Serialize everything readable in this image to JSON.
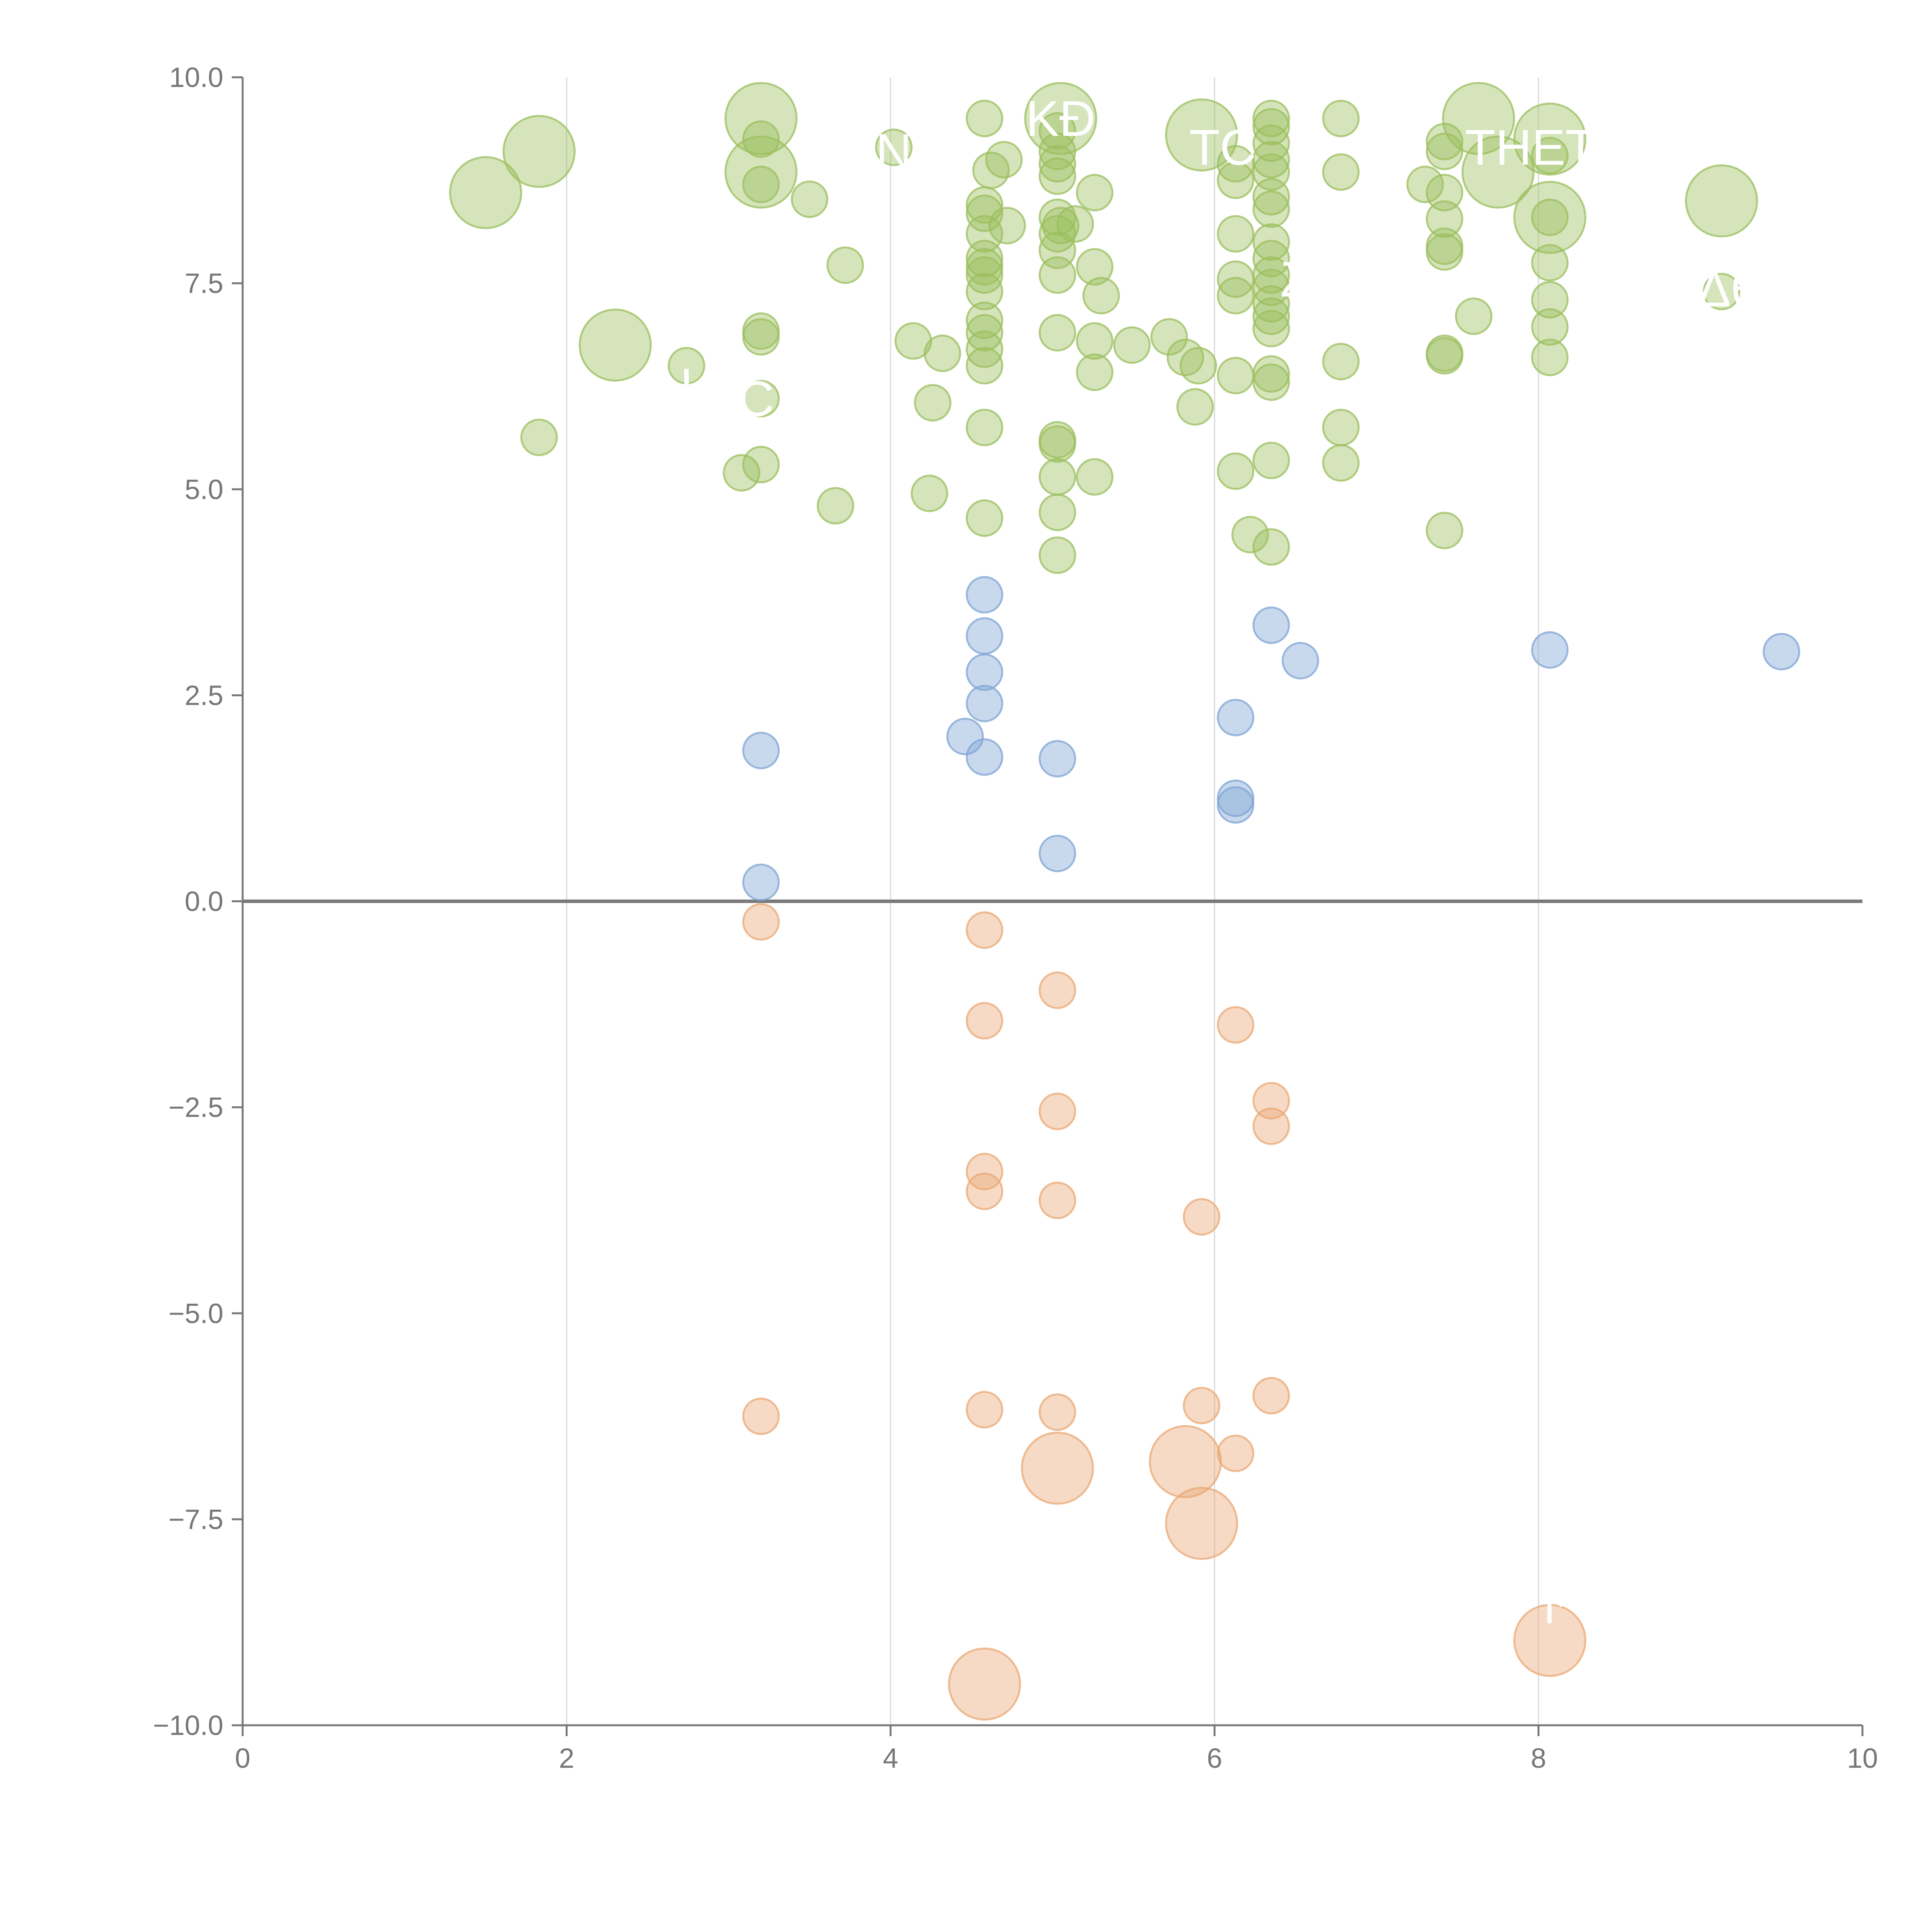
{
  "chart_data": {
    "type": "scatter",
    "title": "",
    "xlabel": "",
    "ylabel": "",
    "xlim": [
      0,
      10
    ],
    "ylim": [
      -10,
      10
    ],
    "x_ticks": [
      "0",
      "2",
      "4",
      "6",
      "8",
      "10"
    ],
    "y_ticks": [
      "10.0",
      "7.5",
      "5.0",
      "2.5",
      "0.0",
      "−2.5",
      "−5.0",
      "−7.5",
      "−10.0"
    ],
    "x_tick_values": [
      0,
      2,
      4,
      6,
      8,
      10
    ],
    "y_tick_values": [
      10,
      7.5,
      5,
      2.5,
      0,
      -2.5,
      -5,
      -7.5,
      -10
    ],
    "grid": "vertical",
    "zero_line": true,
    "colors": {
      "high": "#9bbf5e",
      "mid": "#7fa4d4",
      "low": "#eaa874",
      "axis": "#777777",
      "grid": "#d9d9d9",
      "zero": "#7a7a7a"
    },
    "series": [
      {
        "name": "high",
        "points": [
          {
            "x": 1.5,
            "y": 8.6,
            "size": 3
          },
          {
            "x": 1.83,
            "y": 9.1,
            "size": 3
          },
          {
            "x": 2.3,
            "y": 6.75,
            "size": 3
          },
          {
            "x": 3.2,
            "y": 9.5,
            "size": 3
          },
          {
            "x": 3.2,
            "y": 8.85,
            "size": 3
          },
          {
            "x": 7.63,
            "y": 9.5,
            "size": 3
          },
          {
            "x": 7.75,
            "y": 8.85,
            "size": 3
          },
          {
            "x": 8.07,
            "y": 9.25,
            "size": 3
          },
          {
            "x": 8.07,
            "y": 8.3,
            "size": 3
          },
          {
            "x": 9.13,
            "y": 8.5,
            "size": 3
          },
          {
            "x": 5.92,
            "y": 9.3,
            "size": 3
          },
          {
            "x": 5.05,
            "y": 9.5,
            "size": 3
          },
          {
            "x": 1.83,
            "y": 5.63,
            "size": 1
          },
          {
            "x": 2.74,
            "y": 6.5,
            "size": 1
          },
          {
            "x": 3.08,
            "y": 5.2,
            "size": 1
          },
          {
            "x": 3.2,
            "y": 9.25,
            "size": 1
          },
          {
            "x": 3.2,
            "y": 8.7,
            "size": 1
          },
          {
            "x": 3.2,
            "y": 6.92,
            "size": 1
          },
          {
            "x": 3.2,
            "y": 6.85,
            "size": 1
          },
          {
            "x": 3.2,
            "y": 6.1,
            "size": 1
          },
          {
            "x": 3.2,
            "y": 5.3,
            "size": 1
          },
          {
            "x": 3.5,
            "y": 8.52,
            "size": 1
          },
          {
            "x": 3.66,
            "y": 4.8,
            "size": 1
          },
          {
            "x": 3.72,
            "y": 7.72,
            "size": 1
          },
          {
            "x": 4.02,
            "y": 9.15,
            "size": 1
          },
          {
            "x": 4.14,
            "y": 6.8,
            "size": 1
          },
          {
            "x": 4.24,
            "y": 4.95,
            "size": 1
          },
          {
            "x": 4.26,
            "y": 6.05,
            "size": 1
          },
          {
            "x": 4.32,
            "y": 6.65,
            "size": 1
          },
          {
            "x": 4.58,
            "y": 9.5,
            "size": 1
          },
          {
            "x": 4.58,
            "y": 8.45,
            "size": 1
          },
          {
            "x": 4.58,
            "y": 8.35,
            "size": 1
          },
          {
            "x": 4.58,
            "y": 8.1,
            "size": 1
          },
          {
            "x": 4.58,
            "y": 7.8,
            "size": 1
          },
          {
            "x": 4.58,
            "y": 7.7,
            "size": 1
          },
          {
            "x": 4.58,
            "y": 7.6,
            "size": 1
          },
          {
            "x": 4.58,
            "y": 7.4,
            "size": 1
          },
          {
            "x": 4.58,
            "y": 7.05,
            "size": 1
          },
          {
            "x": 4.58,
            "y": 6.9,
            "size": 1
          },
          {
            "x": 4.58,
            "y": 6.7,
            "size": 1
          },
          {
            "x": 4.58,
            "y": 6.5,
            "size": 1
          },
          {
            "x": 4.58,
            "y": 5.75,
            "size": 1
          },
          {
            "x": 4.58,
            "y": 4.65,
            "size": 1
          },
          {
            "x": 4.62,
            "y": 8.87,
            "size": 1
          },
          {
            "x": 4.7,
            "y": 9.0,
            "size": 1
          },
          {
            "x": 4.72,
            "y": 8.2,
            "size": 1
          },
          {
            "x": 5.03,
            "y": 9.35,
            "size": 1
          },
          {
            "x": 5.03,
            "y": 9.1,
            "size": 1
          },
          {
            "x": 5.03,
            "y": 8.95,
            "size": 1
          },
          {
            "x": 5.03,
            "y": 8.8,
            "size": 1
          },
          {
            "x": 5.03,
            "y": 8.3,
            "size": 1
          },
          {
            "x": 5.03,
            "y": 8.1,
            "size": 1
          },
          {
            "x": 5.03,
            "y": 7.9,
            "size": 1
          },
          {
            "x": 5.03,
            "y": 7.6,
            "size": 1
          },
          {
            "x": 5.03,
            "y": 6.9,
            "size": 1
          },
          {
            "x": 5.03,
            "y": 5.6,
            "size": 1
          },
          {
            "x": 5.03,
            "y": 5.55,
            "size": 1
          },
          {
            "x": 5.03,
            "y": 5.15,
            "size": 1
          },
          {
            "x": 5.03,
            "y": 4.72,
            "size": 1
          },
          {
            "x": 5.03,
            "y": 4.2,
            "size": 1
          },
          {
            "x": 5.05,
            "y": 8.2,
            "size": 1
          },
          {
            "x": 5.14,
            "y": 8.22,
            "size": 1
          },
          {
            "x": 5.26,
            "y": 8.6,
            "size": 1
          },
          {
            "x": 5.26,
            "y": 7.7,
            "size": 1
          },
          {
            "x": 5.26,
            "y": 6.8,
            "size": 1
          },
          {
            "x": 5.26,
            "y": 6.42,
            "size": 1
          },
          {
            "x": 5.26,
            "y": 5.15,
            "size": 1
          },
          {
            "x": 5.3,
            "y": 7.35,
            "size": 1
          },
          {
            "x": 5.49,
            "y": 6.75,
            "size": 1
          },
          {
            "x": 5.72,
            "y": 6.85,
            "size": 1
          },
          {
            "x": 5.82,
            "y": 6.6,
            "size": 1
          },
          {
            "x": 5.9,
            "y": 6.5,
            "size": 1
          },
          {
            "x": 5.88,
            "y": 6.0,
            "size": 1
          },
          {
            "x": 6.13,
            "y": 8.95,
            "size": 1
          },
          {
            "x": 6.13,
            "y": 8.75,
            "size": 1
          },
          {
            "x": 6.13,
            "y": 8.1,
            "size": 1
          },
          {
            "x": 6.13,
            "y": 7.55,
            "size": 1
          },
          {
            "x": 6.13,
            "y": 7.35,
            "size": 1
          },
          {
            "x": 6.13,
            "y": 6.38,
            "size": 1
          },
          {
            "x": 6.13,
            "y": 5.22,
            "size": 1
          },
          {
            "x": 6.22,
            "y": 4.45,
            "size": 1
          },
          {
            "x": 6.35,
            "y": 9.5,
            "size": 1
          },
          {
            "x": 6.35,
            "y": 9.4,
            "size": 1
          },
          {
            "x": 6.35,
            "y": 9.2,
            "size": 1
          },
          {
            "x": 6.35,
            "y": 9.0,
            "size": 1
          },
          {
            "x": 6.35,
            "y": 8.85,
            "size": 1
          },
          {
            "x": 6.35,
            "y": 8.55,
            "size": 1
          },
          {
            "x": 6.35,
            "y": 8.4,
            "size": 1
          },
          {
            "x": 6.35,
            "y": 8.0,
            "size": 1
          },
          {
            "x": 6.35,
            "y": 7.8,
            "size": 1
          },
          {
            "x": 6.35,
            "y": 7.6,
            "size": 1
          },
          {
            "x": 6.35,
            "y": 7.45,
            "size": 1
          },
          {
            "x": 6.35,
            "y": 7.25,
            "size": 1
          },
          {
            "x": 6.35,
            "y": 7.1,
            "size": 1
          },
          {
            "x": 6.35,
            "y": 6.95,
            "size": 1
          },
          {
            "x": 6.35,
            "y": 6.4,
            "size": 1
          },
          {
            "x": 6.35,
            "y": 6.3,
            "size": 1
          },
          {
            "x": 6.35,
            "y": 5.35,
            "size": 1
          },
          {
            "x": 6.35,
            "y": 4.3,
            "size": 1
          },
          {
            "x": 6.78,
            "y": 9.5,
            "size": 1
          },
          {
            "x": 6.78,
            "y": 8.85,
            "size": 1
          },
          {
            "x": 6.78,
            "y": 6.55,
            "size": 1
          },
          {
            "x": 6.78,
            "y": 5.75,
            "size": 1
          },
          {
            "x": 6.78,
            "y": 5.32,
            "size": 1
          },
          {
            "x": 7.3,
            "y": 8.7,
            "size": 1
          },
          {
            "x": 7.42,
            "y": 9.22,
            "size": 1
          },
          {
            "x": 7.42,
            "y": 9.1,
            "size": 1
          },
          {
            "x": 7.42,
            "y": 8.6,
            "size": 1
          },
          {
            "x": 7.42,
            "y": 8.28,
            "size": 1
          },
          {
            "x": 7.42,
            "y": 7.95,
            "size": 1
          },
          {
            "x": 7.42,
            "y": 7.88,
            "size": 1
          },
          {
            "x": 7.42,
            "y": 6.65,
            "size": 1
          },
          {
            "x": 7.42,
            "y": 6.62,
            "size": 1
          },
          {
            "x": 7.42,
            "y": 4.5,
            "size": 1
          },
          {
            "x": 7.6,
            "y": 7.1,
            "size": 1
          },
          {
            "x": 8.07,
            "y": 9.05,
            "size": 1
          },
          {
            "x": 8.07,
            "y": 8.3,
            "size": 1
          },
          {
            "x": 8.07,
            "y": 7.75,
            "size": 1
          },
          {
            "x": 8.07,
            "y": 7.3,
            "size": 1
          },
          {
            "x": 8.07,
            "y": 6.97,
            "size": 1
          },
          {
            "x": 8.07,
            "y": 6.6,
            "size": 1
          },
          {
            "x": 9.13,
            "y": 7.4,
            "size": 1
          }
        ]
      },
      {
        "name": "mid",
        "points": [
          {
            "x": 3.2,
            "y": 1.83,
            "size": 1
          },
          {
            "x": 3.2,
            "y": 0.23,
            "size": 1
          },
          {
            "x": 4.46,
            "y": 2.0,
            "size": 1
          },
          {
            "x": 4.58,
            "y": 3.72,
            "size": 1
          },
          {
            "x": 4.58,
            "y": 3.22,
            "size": 1
          },
          {
            "x": 4.58,
            "y": 2.78,
            "size": 1
          },
          {
            "x": 4.58,
            "y": 2.4,
            "size": 1
          },
          {
            "x": 4.58,
            "y": 1.75,
            "size": 1
          },
          {
            "x": 5.03,
            "y": 1.73,
            "size": 1
          },
          {
            "x": 5.03,
            "y": 0.58,
            "size": 1
          },
          {
            "x": 6.13,
            "y": 2.23,
            "size": 1
          },
          {
            "x": 6.13,
            "y": 1.25,
            "size": 1
          },
          {
            "x": 6.13,
            "y": 1.17,
            "size": 1
          },
          {
            "x": 6.35,
            "y": 3.35,
            "size": 1
          },
          {
            "x": 6.53,
            "y": 2.92,
            "size": 1
          },
          {
            "x": 8.07,
            "y": 3.05,
            "size": 1
          },
          {
            "x": 9.5,
            "y": 3.03,
            "size": 1
          }
        ]
      },
      {
        "name": "low",
        "points": [
          {
            "x": 3.2,
            "y": -0.25,
            "size": 1
          },
          {
            "x": 3.2,
            "y": -6.25,
            "size": 1
          },
          {
            "x": 4.58,
            "y": -0.35,
            "size": 1
          },
          {
            "x": 4.58,
            "y": -1.45,
            "size": 1
          },
          {
            "x": 4.58,
            "y": -3.28,
            "size": 1
          },
          {
            "x": 4.58,
            "y": -3.52,
            "size": 1
          },
          {
            "x": 4.58,
            "y": -6.17,
            "size": 1
          },
          {
            "x": 5.03,
            "y": -1.08,
            "size": 1
          },
          {
            "x": 5.03,
            "y": -2.55,
            "size": 1
          },
          {
            "x": 5.03,
            "y": -3.63,
            "size": 1
          },
          {
            "x": 5.03,
            "y": -6.2,
            "size": 1
          },
          {
            "x": 5.92,
            "y": -3.83,
            "size": 1
          },
          {
            "x": 5.92,
            "y": -6.12,
            "size": 1
          },
          {
            "x": 6.13,
            "y": -1.5,
            "size": 1
          },
          {
            "x": 6.13,
            "y": -6.7,
            "size": 1
          },
          {
            "x": 6.35,
            "y": -2.42,
            "size": 1
          },
          {
            "x": 6.35,
            "y": -2.73,
            "size": 1
          },
          {
            "x": 6.35,
            "y": -6.0,
            "size": 1
          },
          {
            "x": 5.03,
            "y": -6.88,
            "size": 3
          },
          {
            "x": 5.82,
            "y": -6.8,
            "size": 3
          },
          {
            "x": 5.92,
            "y": -7.55,
            "size": 3
          },
          {
            "x": 4.58,
            "y": -9.5,
            "size": 3
          },
          {
            "x": 8.07,
            "y": -8.97,
            "size": 3
          }
        ]
      }
    ],
    "annotations": [
      {
        "text": "KÐ",
        "x": 5.05,
        "y": 9.5
      },
      {
        "text": "TC",
        "x": 6.05,
        "y": 9.15
      },
      {
        "text": "THET",
        "x": 7.95,
        "y": 9.15
      },
      {
        "text": "N",
        "x": 4.02,
        "y": 9.1
      },
      {
        "text": "C",
        "x": 3.17,
        "y": 6.1
      },
      {
        "text": "ı",
        "x": 2.74,
        "y": 6.35
      },
      {
        "text": "Z",
        "x": 6.5,
        "y": 7.55
      },
      {
        "text": "Δθ",
        "x": 9.17,
        "y": 7.43
      },
      {
        "text": "↱",
        "x": 8.12,
        "y": -8.55
      }
    ]
  }
}
